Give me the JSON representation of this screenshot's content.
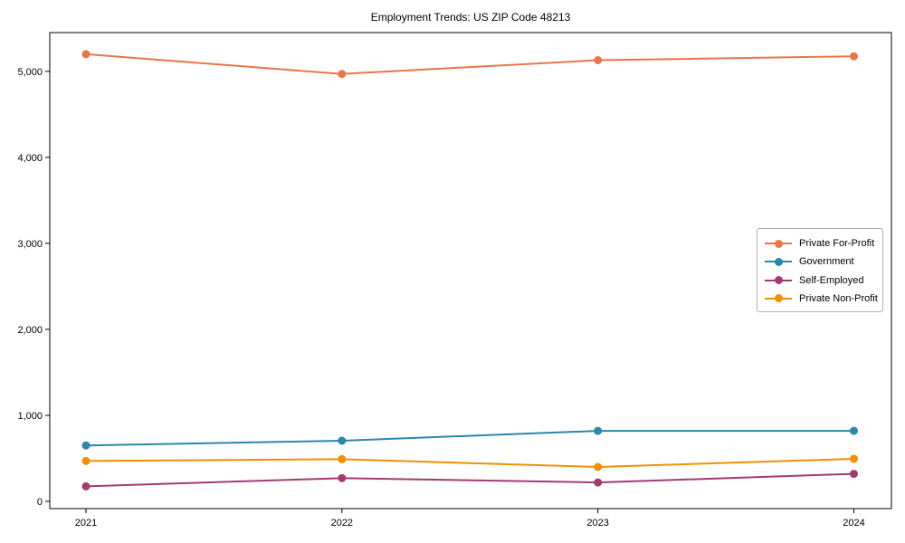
{
  "title": "Employment Trends: US ZIP Code 48213",
  "chart_data": {
    "type": "line",
    "title": "Employment Trends: US ZIP Code 48213",
    "xlabel": "",
    "ylabel": "",
    "categories": [
      "2021",
      "2022",
      "2023",
      "2024"
    ],
    "x": [
      2021,
      2022,
      2023,
      2024
    ],
    "series": [
      {
        "name": "Private For-Profit",
        "color": "#E8764B",
        "values": [
          5200,
          4970,
          5130,
          5175
        ]
      },
      {
        "name": "Government",
        "color": "#2E86AB",
        "values": [
          650,
          705,
          820,
          820
        ]
      },
      {
        "name": "Self-Employed",
        "color": "#A23B72",
        "values": [
          175,
          270,
          220,
          320
        ]
      },
      {
        "name": "Private Non-Profit",
        "color": "#F18F01",
        "values": [
          470,
          490,
          400,
          495
        ]
      }
    ],
    "ylim": [
      0,
      5000
    ],
    "yticks": [
      0,
      1000,
      2000,
      3000,
      4000,
      5000
    ],
    "ytick_labels": [
      "0",
      "1,000",
      "2,000",
      "3,000",
      "4,000",
      "5,000"
    ],
    "grid": false,
    "legend_position": "center right",
    "marker": "circle",
    "axis_color": "#000000",
    "text_color": "#000000"
  }
}
